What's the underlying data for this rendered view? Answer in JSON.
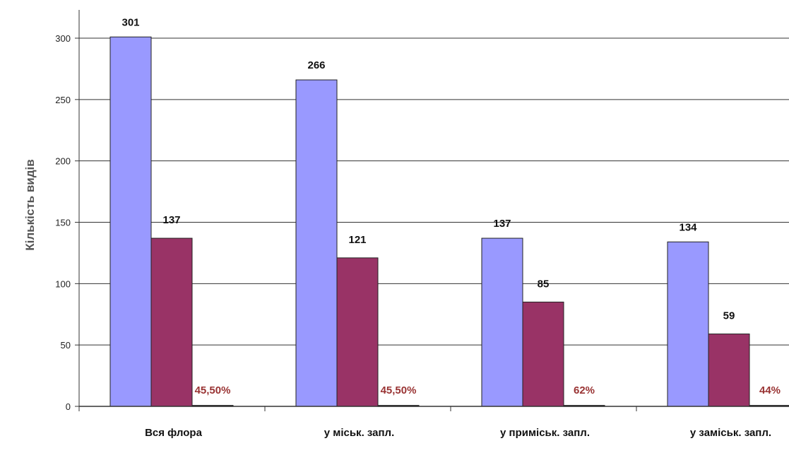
{
  "chart_data": {
    "type": "bar",
    "title": "",
    "xlabel": "",
    "ylabel": "Кількість видів",
    "ylim": [
      0,
      300
    ],
    "yticks": [
      "0",
      "50",
      "100",
      "150",
      "200",
      "250",
      "300"
    ],
    "grid": true,
    "legend": "none",
    "categories": [
      "Вся флора",
      "у міськ. запл.",
      "у приміськ. запл.",
      "у заміськ. запл."
    ],
    "series": [
      {
        "values": [
          301,
          266,
          137,
          134
        ],
        "labels": [
          "301",
          "266",
          "137",
          "134"
        ],
        "color": "#9999ff"
      },
      {
        "values": [
          137,
          121,
          85,
          59
        ],
        "labels": [
          "137",
          "121",
          "85",
          "59"
        ],
        "color": "#993366"
      },
      {
        "values": [
          0.8,
          0.8,
          0.8,
          0.8
        ],
        "labels": [
          "45,50%",
          "45,50%",
          "62%",
          "44%"
        ],
        "color": "#1a1a1a",
        "label_color": "#993333"
      }
    ]
  }
}
